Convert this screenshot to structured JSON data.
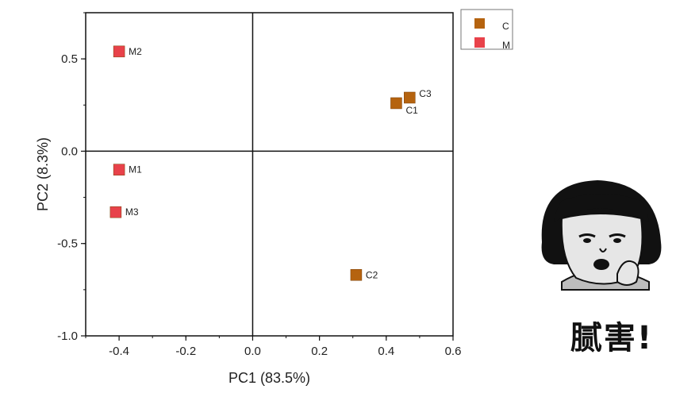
{
  "chart_data": {
    "type": "scatter",
    "title": "",
    "xlabel": "PC1 (83.5%)",
    "ylabel": "PC2 (8.3%)",
    "xlim": [
      -0.5,
      0.6
    ],
    "ylim": [
      -1.0,
      0.75
    ],
    "xticks": [
      -0.4,
      -0.2,
      0.0,
      0.2,
      0.4,
      0.6
    ],
    "xtick_labels": [
      "-0.4",
      "-0.2",
      "0.0",
      "0.2",
      "0.4",
      "0.6"
    ],
    "yticks": [
      0.5,
      0.0,
      -0.5,
      -1.0
    ],
    "ytick_labels": [
      "0.5",
      "0.0",
      "-0.5",
      "-1.0"
    ],
    "zero_lines": true,
    "grid": false,
    "legend_position": "top-right, outside plot",
    "series": [
      {
        "name": "C",
        "color": "#B5630F",
        "marker": "square",
        "points": [
          {
            "label": "C1",
            "x": 0.43,
            "y": 0.26
          },
          {
            "label": "C2",
            "x": 0.31,
            "y": -0.67
          },
          {
            "label": "C3",
            "x": 0.47,
            "y": 0.29
          }
        ]
      },
      {
        "name": "M",
        "color": "#E8424A",
        "marker": "square",
        "points": [
          {
            "label": "M1",
            "x": -0.4,
            "y": -0.1
          },
          {
            "label": "M2",
            "x": -0.4,
            "y": 0.54
          },
          {
            "label": "M3",
            "x": -0.41,
            "y": -0.33
          }
        ]
      }
    ]
  },
  "meme": {
    "caption": "腻害!",
    "icon": "mushroom-head-boy-sticker"
  }
}
